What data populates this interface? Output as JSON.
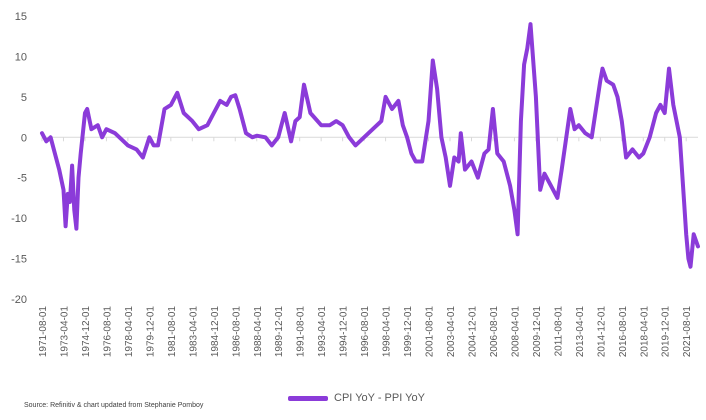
{
  "chart_data": {
    "type": "line",
    "title": "",
    "xlabel": "",
    "ylabel": "",
    "ylim": [
      -20,
      15
    ],
    "yticks": [
      15,
      10,
      5,
      0,
      -5,
      -10,
      -15,
      -20
    ],
    "xlim": [
      "1971-08-01",
      "2022-07-01"
    ],
    "xticks": [
      "1971-08-01",
      "1973-04-01",
      "1974-12-01",
      "1976-08-01",
      "1978-04-01",
      "1979-12-01",
      "1981-08-01",
      "1983-04-01",
      "1984-12-01",
      "1986-08-01",
      "1988-04-01",
      "1989-12-01",
      "1991-08-01",
      "1993-04-01",
      "1994-12-01",
      "1996-08-01",
      "1998-04-01",
      "1999-12-01",
      "2001-08-01",
      "2003-04-01",
      "2004-12-01",
      "2006-08-01",
      "2008-04-01",
      "2009-12-01",
      "2011-08-01",
      "2013-04-01",
      "2014-12-01",
      "2016-08-01",
      "2018-04-01",
      "2019-12-01",
      "2021-08-01"
    ],
    "grid": false,
    "legend_position": "bottom",
    "series": [
      {
        "name": "CPI YoY - PPI YoY",
        "color": "#8B3BD9",
        "points": [
          [
            "1971-08-01",
            0.5
          ],
          [
            "1971-12-01",
            -0.5
          ],
          [
            "1972-04-01",
            0
          ],
          [
            "1972-08-01",
            -2
          ],
          [
            "1972-12-01",
            -4
          ],
          [
            "1973-04-01",
            -6.5
          ],
          [
            "1973-06-01",
            -11
          ],
          [
            "1973-08-01",
            -7
          ],
          [
            "1973-10-01",
            -8
          ],
          [
            "1973-12-01",
            -3.5
          ],
          [
            "1974-02-01",
            -9
          ],
          [
            "1974-04-01",
            -11.3
          ],
          [
            "1974-06-01",
            -5
          ],
          [
            "1974-08-01",
            -2
          ],
          [
            "1974-12-01",
            3
          ],
          [
            "1975-02-01",
            3.5
          ],
          [
            "1975-06-01",
            1
          ],
          [
            "1975-12-01",
            1.5
          ],
          [
            "1976-04-01",
            0
          ],
          [
            "1976-08-01",
            1
          ],
          [
            "1977-04-01",
            0.5
          ],
          [
            "1977-12-01",
            -0.5
          ],
          [
            "1978-04-01",
            -1
          ],
          [
            "1978-12-01",
            -1.5
          ],
          [
            "1979-06-01",
            -2.5
          ],
          [
            "1979-12-01",
            0
          ],
          [
            "1980-04-01",
            -1
          ],
          [
            "1980-08-01",
            -1
          ],
          [
            "1981-02-01",
            3.5
          ],
          [
            "1981-08-01",
            4
          ],
          [
            "1982-02-01",
            5.5
          ],
          [
            "1982-08-01",
            3
          ],
          [
            "1983-04-01",
            2
          ],
          [
            "1983-10-01",
            1
          ],
          [
            "1984-06-01",
            1.5
          ],
          [
            "1984-12-01",
            3
          ],
          [
            "1985-06-01",
            4.5
          ],
          [
            "1985-12-01",
            4
          ],
          [
            "1986-04-01",
            5
          ],
          [
            "1986-08-01",
            5.2
          ],
          [
            "1986-12-01",
            3.5
          ],
          [
            "1987-06-01",
            0.5
          ],
          [
            "1987-12-01",
            0
          ],
          [
            "1988-04-01",
            0.2
          ],
          [
            "1988-12-01",
            0
          ],
          [
            "1989-06-01",
            -1
          ],
          [
            "1989-12-01",
            0
          ],
          [
            "1990-06-01",
            3
          ],
          [
            "1990-12-01",
            -0.5
          ],
          [
            "1991-04-01",
            2
          ],
          [
            "1991-08-01",
            2.5
          ],
          [
            "1991-12-01",
            6.5
          ],
          [
            "1992-06-01",
            3
          ],
          [
            "1993-04-01",
            1.5
          ],
          [
            "1993-12-01",
            1.5
          ],
          [
            "1994-06-01",
            2
          ],
          [
            "1994-12-01",
            1.5
          ],
          [
            "1995-06-01",
            0
          ],
          [
            "1995-12-01",
            -1
          ],
          [
            "1996-08-01",
            0
          ],
          [
            "1997-04-01",
            1
          ],
          [
            "1997-12-01",
            2
          ],
          [
            "1998-04-01",
            5
          ],
          [
            "1998-10-01",
            3.5
          ],
          [
            "1999-04-01",
            4.5
          ],
          [
            "1999-08-01",
            1.5
          ],
          [
            "1999-12-01",
            0
          ],
          [
            "2000-04-01",
            -2
          ],
          [
            "2000-08-01",
            -3
          ],
          [
            "2001-02-01",
            -3
          ],
          [
            "2001-08-01",
            2
          ],
          [
            "2001-12-01",
            9.5
          ],
          [
            "2002-04-01",
            6
          ],
          [
            "2002-08-01",
            0
          ],
          [
            "2002-12-01",
            -2.5
          ],
          [
            "2003-04-01",
            -6
          ],
          [
            "2003-08-01",
            -2.5
          ],
          [
            "2003-12-01",
            -3
          ],
          [
            "2004-02-01",
            0.5
          ],
          [
            "2004-06-01",
            -4
          ],
          [
            "2004-12-01",
            -3
          ],
          [
            "2005-06-01",
            -5
          ],
          [
            "2005-12-01",
            -2
          ],
          [
            "2006-04-01",
            -1.5
          ],
          [
            "2006-08-01",
            3.5
          ],
          [
            "2006-12-01",
            -2
          ],
          [
            "2007-06-01",
            -3
          ],
          [
            "2007-12-01",
            -6
          ],
          [
            "2008-04-01",
            -9
          ],
          [
            "2008-07-01",
            -12
          ],
          [
            "2008-10-01",
            2
          ],
          [
            "2009-01-01",
            9
          ],
          [
            "2009-04-01",
            11
          ],
          [
            "2009-07-01",
            14
          ],
          [
            "2009-12-01",
            5
          ],
          [
            "2010-04-01",
            -6.5
          ],
          [
            "2010-08-01",
            -4.5
          ],
          [
            "2011-02-01",
            -6
          ],
          [
            "2011-08-01",
            -7.5
          ],
          [
            "2011-12-01",
            -4
          ],
          [
            "2012-08-01",
            3.5
          ],
          [
            "2012-12-01",
            1
          ],
          [
            "2013-04-01",
            1.5
          ],
          [
            "2013-10-01",
            0.5
          ],
          [
            "2014-04-01",
            0
          ],
          [
            "2014-12-01",
            7
          ],
          [
            "2015-02-01",
            8.5
          ],
          [
            "2015-06-01",
            7
          ],
          [
            "2015-12-01",
            6.5
          ],
          [
            "2016-04-01",
            5
          ],
          [
            "2016-08-01",
            2
          ],
          [
            "2016-12-01",
            -2.5
          ],
          [
            "2017-06-01",
            -1.5
          ],
          [
            "2017-12-01",
            -2.5
          ],
          [
            "2018-04-01",
            -2
          ],
          [
            "2018-10-01",
            0
          ],
          [
            "2019-04-01",
            3
          ],
          [
            "2019-08-01",
            4
          ],
          [
            "2019-12-01",
            3
          ],
          [
            "2020-04-01",
            8.5
          ],
          [
            "2020-08-01",
            4
          ],
          [
            "2021-02-01",
            0
          ],
          [
            "2021-06-01",
            -8
          ],
          [
            "2021-08-01",
            -12
          ],
          [
            "2021-10-01",
            -15
          ],
          [
            "2021-12-01",
            -16
          ],
          [
            "2022-03-01",
            -12
          ],
          [
            "2022-07-01",
            -13.5
          ]
        ]
      }
    ]
  },
  "source_note": "Source: Refinitiv & chart updated from Stephanie Pomboy"
}
